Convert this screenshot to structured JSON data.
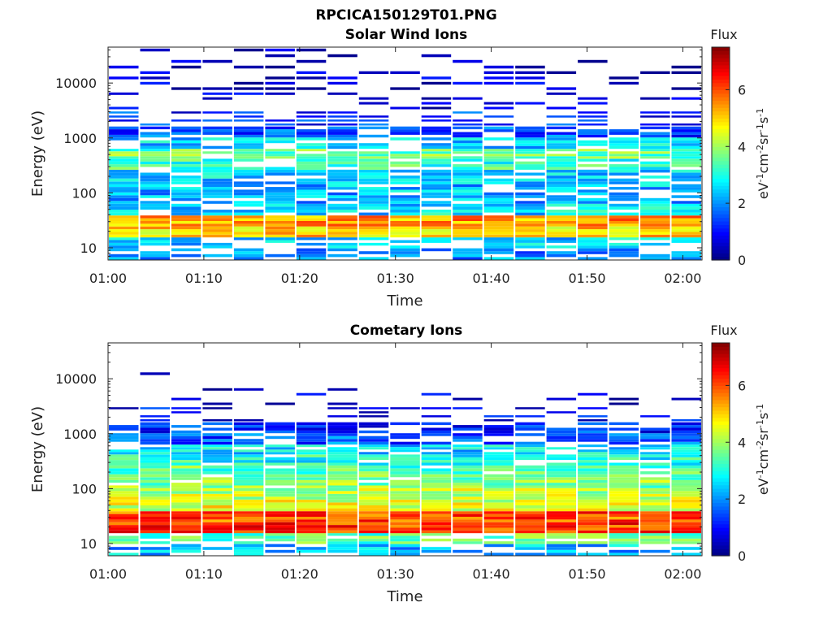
{
  "figure_title": "RPCICA150129T01.PNG",
  "chart_data": [
    {
      "type": "heatmap",
      "title": "Solar Wind Ions",
      "xlabel": "Time",
      "ylabel": "Energy (eV)",
      "x_ticks": [
        "01:00",
        "01:10",
        "01:20",
        "01:30",
        "01:40",
        "01:50",
        "02:00"
      ],
      "x_range": [
        "01:00",
        "02:02"
      ],
      "y_scale": "log",
      "y_ticks": [
        "10",
        "100",
        "1000",
        "10000"
      ],
      "y_range": [
        6,
        45000
      ],
      "colorbar": {
        "title": "Flux",
        "label": "eV-1cm-2sr-1s-1",
        "ticks": [
          "0",
          "2",
          "4",
          "6"
        ],
        "range": [
          0,
          7.5
        ],
        "colormap": "jet"
      },
      "profile": {
        "energy_bands_eV": [
          8,
          12,
          20,
          30,
          50,
          80,
          130,
          200,
          350,
          500,
          800,
          1300,
          2000,
          5000,
          10000,
          30000
        ],
        "typical_log_flux": [
          2.0,
          2.5,
          5.0,
          5.4,
          2.6,
          2.2,
          2.3,
          2.6,
          3.2,
          3.6,
          2.5,
          1.5,
          1.2,
          0.6,
          0.4,
          0.3
        ],
        "coverage": [
          0.55,
          0.8,
          1.0,
          1.0,
          0.85,
          0.75,
          0.8,
          0.8,
          0.85,
          0.85,
          0.8,
          0.75,
          0.55,
          0.3,
          0.35,
          0.35
        ]
      }
    },
    {
      "type": "heatmap",
      "title": "Cometary Ions",
      "xlabel": "Time",
      "ylabel": "Energy (eV)",
      "x_ticks": [
        "01:00",
        "01:10",
        "01:20",
        "01:30",
        "01:40",
        "01:50",
        "02:00"
      ],
      "x_range": [
        "01:00",
        "02:02"
      ],
      "y_scale": "log",
      "y_ticks": [
        "10",
        "100",
        "1000",
        "10000"
      ],
      "y_range": [
        6,
        45000
      ],
      "colorbar": {
        "title": "Flux",
        "label": "eV-1cm-2sr-1s-1",
        "ticks": [
          "0",
          "2",
          "4",
          "6"
        ],
        "range": [
          0,
          7.5
        ],
        "colormap": "jet"
      },
      "profile": {
        "energy_bands_eV": [
          8,
          12,
          20,
          30,
          50,
          80,
          130,
          200,
          350,
          500,
          800,
          1300,
          2000,
          5000,
          10000,
          30000
        ],
        "typical_log_flux": [
          2.3,
          3.5,
          6.2,
          6.0,
          4.5,
          4.2,
          3.8,
          3.5,
          3.0,
          2.6,
          1.6,
          1.2,
          0.9,
          0.5,
          0.3,
          0.2
        ],
        "coverage": [
          0.55,
          0.85,
          1.0,
          1.0,
          1.0,
          1.0,
          0.95,
          0.9,
          0.85,
          0.8,
          0.75,
          0.65,
          0.35,
          0.15,
          0.05,
          0.0
        ]
      }
    }
  ]
}
